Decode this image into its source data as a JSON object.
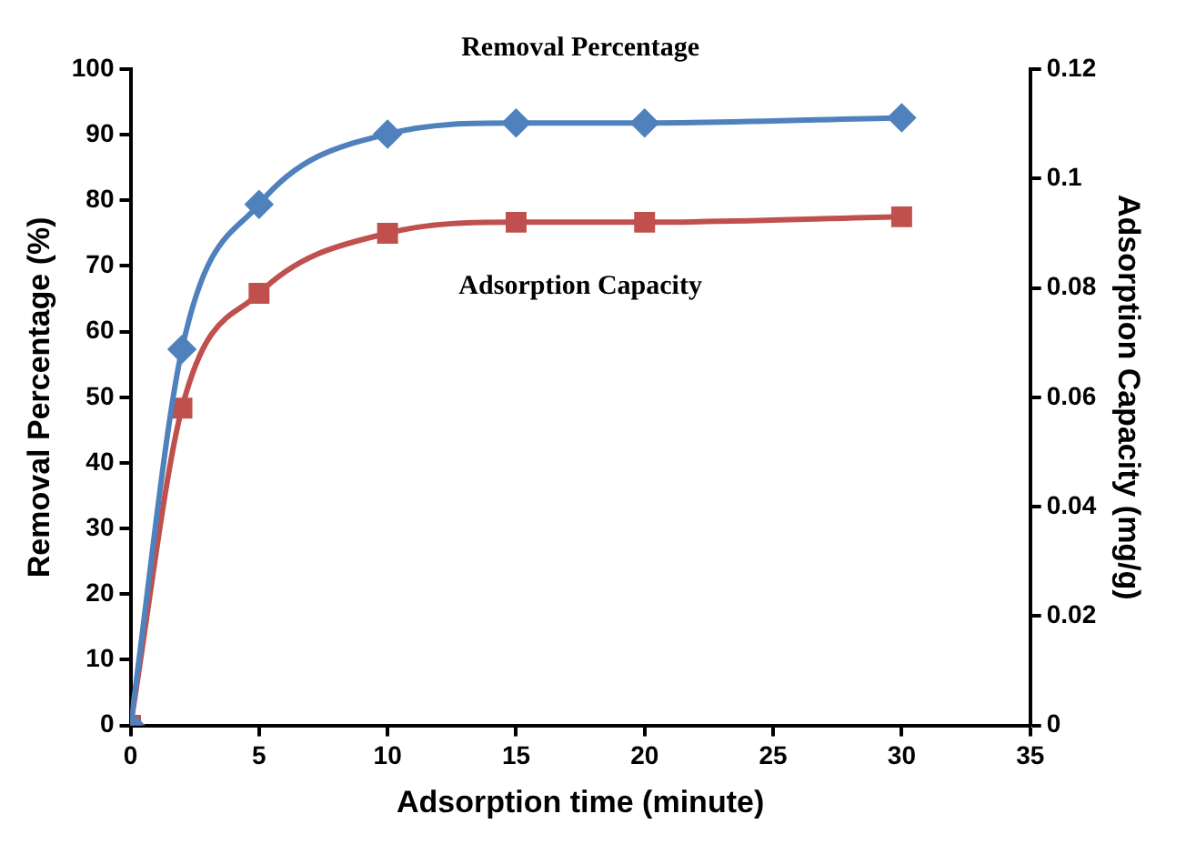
{
  "chart_data": {
    "type": "line",
    "xlabel": "Adsorption time (minute)",
    "ylabel": "Removal Percentage (%)",
    "y2label": "Adsorption Capacity (mg/g)",
    "x": [
      0,
      2,
      5,
      10,
      15,
      20,
      30
    ],
    "series": [
      {
        "name": "Removal Percentage",
        "color": "#4f81bd",
        "marker": "diamond",
        "values": [
          0,
          57.3,
          79.4,
          90.1,
          91.8,
          91.8,
          92.6
        ]
      },
      {
        "name": "Adsorption Capacity",
        "color": "#c0504d",
        "marker": "square",
        "axis": "y2",
        "values": [
          0,
          0.058,
          0.079,
          0.09,
          0.092,
          0.092,
          0.093
        ]
      }
    ],
    "xlim": [
      0,
      35
    ],
    "xticks": [
      0,
      5,
      10,
      15,
      20,
      25,
      30,
      35
    ],
    "ylim": [
      0,
      100
    ],
    "yticks": [
      0,
      10,
      20,
      30,
      40,
      50,
      60,
      70,
      80,
      90,
      100
    ],
    "y2lim": [
      0,
      0.12
    ],
    "y2ticks": [
      0,
      0.02,
      0.04,
      0.06,
      0.08,
      0.1,
      0.12
    ],
    "grid": false,
    "legend": false,
    "line_style": "solid"
  }
}
